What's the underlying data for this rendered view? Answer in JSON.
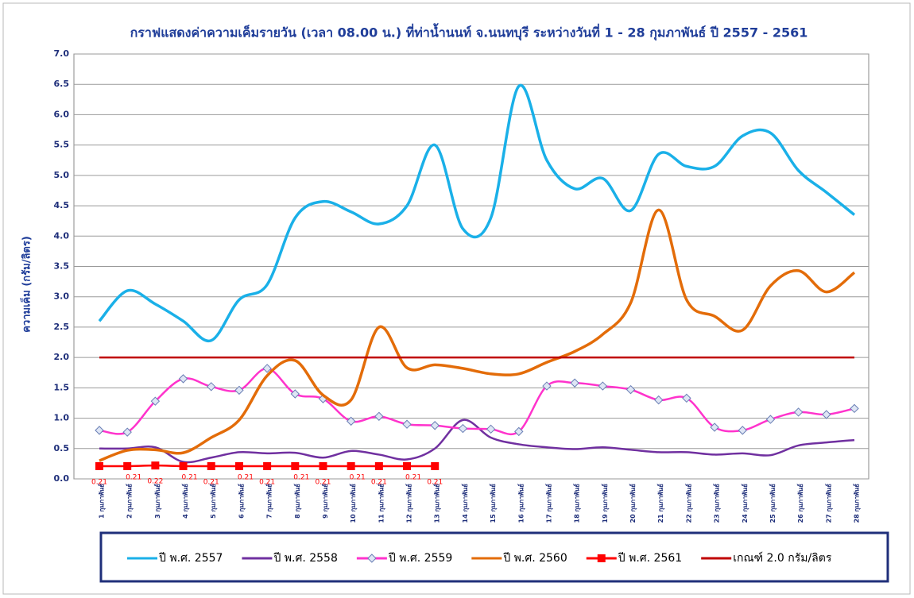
{
  "chart_data": {
    "type": "line",
    "title": "กราฟแสดงค่าความเค็มรายวัน (เวลา 08.00 น.) ที่ท่าน้ำนนท์ จ.นนทบุรี ระหว่างวันที่ 1 - 28 กุมภาพันธ์ ปี 2557 - 2561",
    "y_label": "ความเค็ม  (กรัม/ลิตร)",
    "categories": [
      "1 กุมภาพันธ์",
      "2 กุมภาพันธ์",
      "3 กุมภาพันธ์",
      "4 กุมภาพันธ์",
      "5 กุมภาพันธ์",
      "6 กุมภาพันธ์",
      "7 กุมภาพันธ์",
      "8 กุมภาพันธ์",
      "9 กุมภาพันธ์",
      "10 กุมภาพันธ์",
      "11 กุมภาพันธ์",
      "12 กุมภาพันธ์",
      "13 กุมภาพันธ์",
      "14 กุมภาพันธ์",
      "15 กุมภาพันธ์",
      "16 กุมภาพันธ์",
      "17 กุมภาพันธ์",
      "18 กุมภาพันธ์",
      "19 กุมภาพันธ์",
      "20 กุมภาพันธ์",
      "21 กุมภาพันธ์",
      "22 กุมภาพันธ์",
      "23 กุมภาพันธ์",
      "24 กุมภาพันธ์",
      "25 กุมภาพันธ์",
      "26 กุมภาพันธ์",
      "27 กุมภาพันธ์",
      "28 กุมภาพันธ์"
    ],
    "series": [
      {
        "name": "ปี พ.ศ. 2557",
        "color": "#1ab0e8",
        "marker": "none",
        "values": [
          2.6,
          3.1,
          2.88,
          2.6,
          2.28,
          2.95,
          3.2,
          4.3,
          4.57,
          4.4,
          4.2,
          4.5,
          5.5,
          4.12,
          4.3,
          6.47,
          5.25,
          4.78,
          4.95,
          4.42,
          5.35,
          5.15,
          5.15,
          5.65,
          5.7,
          5.08,
          4.72,
          4.35
        ]
      },
      {
        "name": "ปี พ.ศ. 2558",
        "color": "#7030a0",
        "marker": "none",
        "values": [
          0.5,
          0.5,
          0.52,
          0.28,
          0.35,
          0.44,
          0.42,
          0.43,
          0.35,
          0.46,
          0.4,
          0.32,
          0.5,
          0.97,
          0.68,
          0.57,
          0.52,
          0.49,
          0.52,
          0.48,
          0.44,
          0.44,
          0.4,
          0.42,
          0.39,
          0.55,
          0.6,
          0.64
        ]
      },
      {
        "name": "ปี พ.ศ. 2559",
        "color": "#ff33cc",
        "marker": "diamond",
        "values": [
          0.8,
          0.77,
          1.28,
          1.65,
          1.52,
          1.46,
          1.82,
          1.4,
          1.32,
          0.95,
          1.03,
          0.9,
          0.88,
          0.83,
          0.82,
          0.78,
          1.53,
          1.58,
          1.53,
          1.47,
          1.3,
          1.33,
          0.85,
          0.8,
          0.98,
          1.1,
          1.06,
          1.16
        ]
      },
      {
        "name": "ปี พ.ศ. 2560",
        "color": "#e36c09",
        "marker": "none",
        "values": [
          0.3,
          0.47,
          0.48,
          0.43,
          0.68,
          0.97,
          1.7,
          1.95,
          1.38,
          1.3,
          2.5,
          1.83,
          1.88,
          1.82,
          1.73,
          1.73,
          1.92,
          2.1,
          2.38,
          2.9,
          4.43,
          2.95,
          2.68,
          2.45,
          3.18,
          3.43,
          3.08,
          3.4
        ]
      },
      {
        "name": "ปี พ.ศ. 2561",
        "color": "#ff0000",
        "marker": "square",
        "data_labels": true,
        "values": [
          0.21,
          0.21,
          0.22,
          0.21,
          0.21,
          0.21,
          0.21,
          0.21,
          0.21,
          0.21,
          0.21,
          0.21,
          0.21,
          null,
          null,
          null,
          null,
          null,
          null,
          null,
          null,
          null,
          null,
          null,
          null,
          null,
          null,
          null
        ]
      },
      {
        "name": "เกณฑ์ 2.0 กรัม/ลิตร",
        "color": "#c00000",
        "marker": "none",
        "values": [
          2,
          2,
          2,
          2,
          2,
          2,
          2,
          2,
          2,
          2,
          2,
          2,
          2,
          2,
          2,
          2,
          2,
          2,
          2,
          2,
          2,
          2,
          2,
          2,
          2,
          2,
          2,
          2
        ]
      }
    ],
    "ylim": [
      0,
      7
    ],
    "yticks": [
      {
        "value": 0,
        "label": "0.0"
      },
      0.5,
      {
        "value": 1,
        "label": "1.0"
      },
      1.5,
      {
        "value": 2,
        "label": "2.0"
      },
      2.5,
      {
        "value": 3,
        "label": "3.0"
      },
      3.5,
      {
        "value": 4,
        "label": "4.0"
      },
      4.5,
      {
        "value": 5,
        "label": "5.0"
      },
      5.5,
      {
        "value": 6,
        "label": "6.0"
      },
      6.5,
      {
        "value": 7,
        "label": "7.0"
      }
    ],
    "grid": true,
    "legend": "bottom"
  }
}
